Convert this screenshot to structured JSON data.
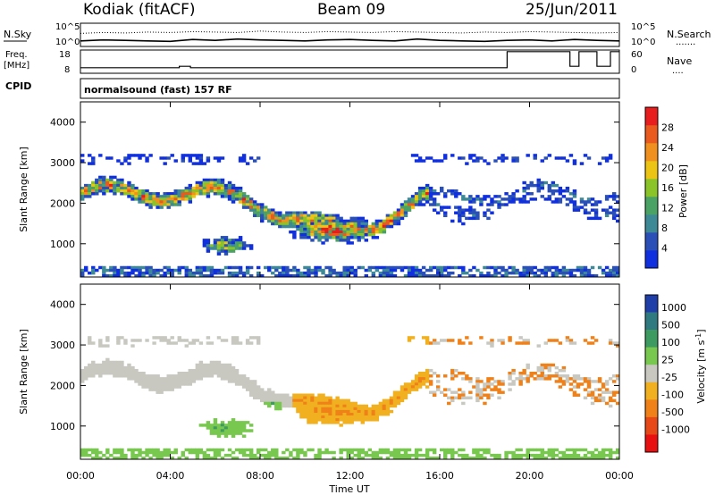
{
  "header": {
    "station": "Kodiak (fitACF)",
    "beam": "Beam 09",
    "date": "25/Jun/2011",
    "cpid_text": "normalsound (fast) 157 RF"
  },
  "chart_data": [
    {
      "type": "line",
      "panel": "noise",
      "left_label": "N.Sky",
      "right_label": "N.Search",
      "right_label_sub": ".......",
      "y_ticks_left": [
        "10^5",
        "10^0"
      ],
      "y_ticks_right": [
        "10^5",
        "10^0"
      ],
      "xlim_hours": [
        0,
        24
      ],
      "series": [
        {
          "name": "N.Sky",
          "style": "solid",
          "values": [
            1.2,
            1.4,
            1.3,
            1.2,
            1.1,
            1.5,
            1.3,
            1.6,
            1.4,
            1.3,
            1.2,
            1.4,
            1.5,
            1.3,
            1.2,
            1.6,
            1.3,
            1.2,
            1.1,
            1.3,
            1.4,
            1.2,
            1.5,
            1.3,
            1.2
          ]
        },
        {
          "name": "N.Search",
          "style": "dotted",
          "values": [
            2.8,
            3.0,
            2.9,
            3.1,
            3.0,
            3.2,
            3.1,
            3.0,
            3.3,
            3.1,
            3.0,
            3.2,
            3.1,
            3.0,
            3.2,
            3.1,
            3.0,
            2.9,
            3.1,
            3.0,
            3.2,
            3.1,
            3.0,
            2.9,
            3.0
          ]
        }
      ]
    },
    {
      "type": "line",
      "panel": "frequency",
      "left_label": "Freq.",
      "left_unit": "[MHz]",
      "right_label": "Nave",
      "right_label_sub": "....",
      "y_ticks_left": [
        "18",
        "8"
      ],
      "y_ticks_right": [
        "60",
        "0"
      ],
      "ylim_left": [
        8,
        18
      ],
      "ylim_right": [
        0,
        60
      ],
      "xlim_hours": [
        0,
        24
      ],
      "freq_steps": [
        [
          0,
          10.4
        ],
        [
          4.4,
          10.4
        ],
        [
          4.4,
          11.0
        ],
        [
          4.9,
          11.0
        ],
        [
          4.9,
          10.4
        ],
        [
          19.0,
          10.4
        ],
        [
          19.0,
          17.3
        ],
        [
          21.8,
          17.3
        ],
        [
          21.8,
          11.0
        ],
        [
          22.2,
          11.0
        ],
        [
          22.2,
          17.3
        ],
        [
          23.0,
          17.3
        ],
        [
          23.0,
          11.0
        ],
        [
          23.6,
          11.0
        ],
        [
          23.6,
          17.3
        ],
        [
          24.0,
          17.3
        ]
      ],
      "cpid_label": "CPID"
    },
    {
      "type": "heatmap",
      "panel": "power",
      "ylabel": "Slant Range [km]",
      "y_ticks": [
        1000,
        2000,
        3000,
        4000
      ],
      "ylim": [
        180,
        4500
      ],
      "xlim_hours": [
        0,
        24
      ],
      "colorbar_label": "Power [dB]",
      "colorbar_ticks": [
        "4",
        "8",
        "12",
        "16",
        "20",
        "24",
        "28"
      ],
      "colorbar_colors": [
        "#1030e0",
        "#2a50b8",
        "#3d8a96",
        "#4aa264",
        "#8ac428",
        "#ecc414",
        "#f0901e",
        "#ea5a1e",
        "#e81e1e"
      ]
    },
    {
      "type": "heatmap",
      "panel": "velocity",
      "ylabel": "Slant Range [km]",
      "y_ticks": [
        1000,
        2000,
        3000,
        4000
      ],
      "ylim": [
        180,
        4500
      ],
      "xlim_hours": [
        0,
        24
      ],
      "xlabel": "Time UT",
      "x_ticks": [
        "00:00",
        "04:00",
        "08:00",
        "12:00",
        "16:00",
        "20:00",
        "00:00"
      ],
      "colorbar_label": "Velocity [m s",
      "colorbar_label_sup": "-1",
      "colorbar_label_end": "]",
      "colorbar_ticks": [
        "1000",
        "500",
        "100",
        "25",
        "-25",
        "-100",
        "-500",
        "-1000"
      ],
      "colorbar_colors": [
        "#1f3ea8",
        "#2f7a80",
        "#3d9a60",
        "#78c850",
        "#c8c8c0",
        "#f0b020",
        "#f08018",
        "#e84818",
        "#e81010"
      ]
    }
  ]
}
